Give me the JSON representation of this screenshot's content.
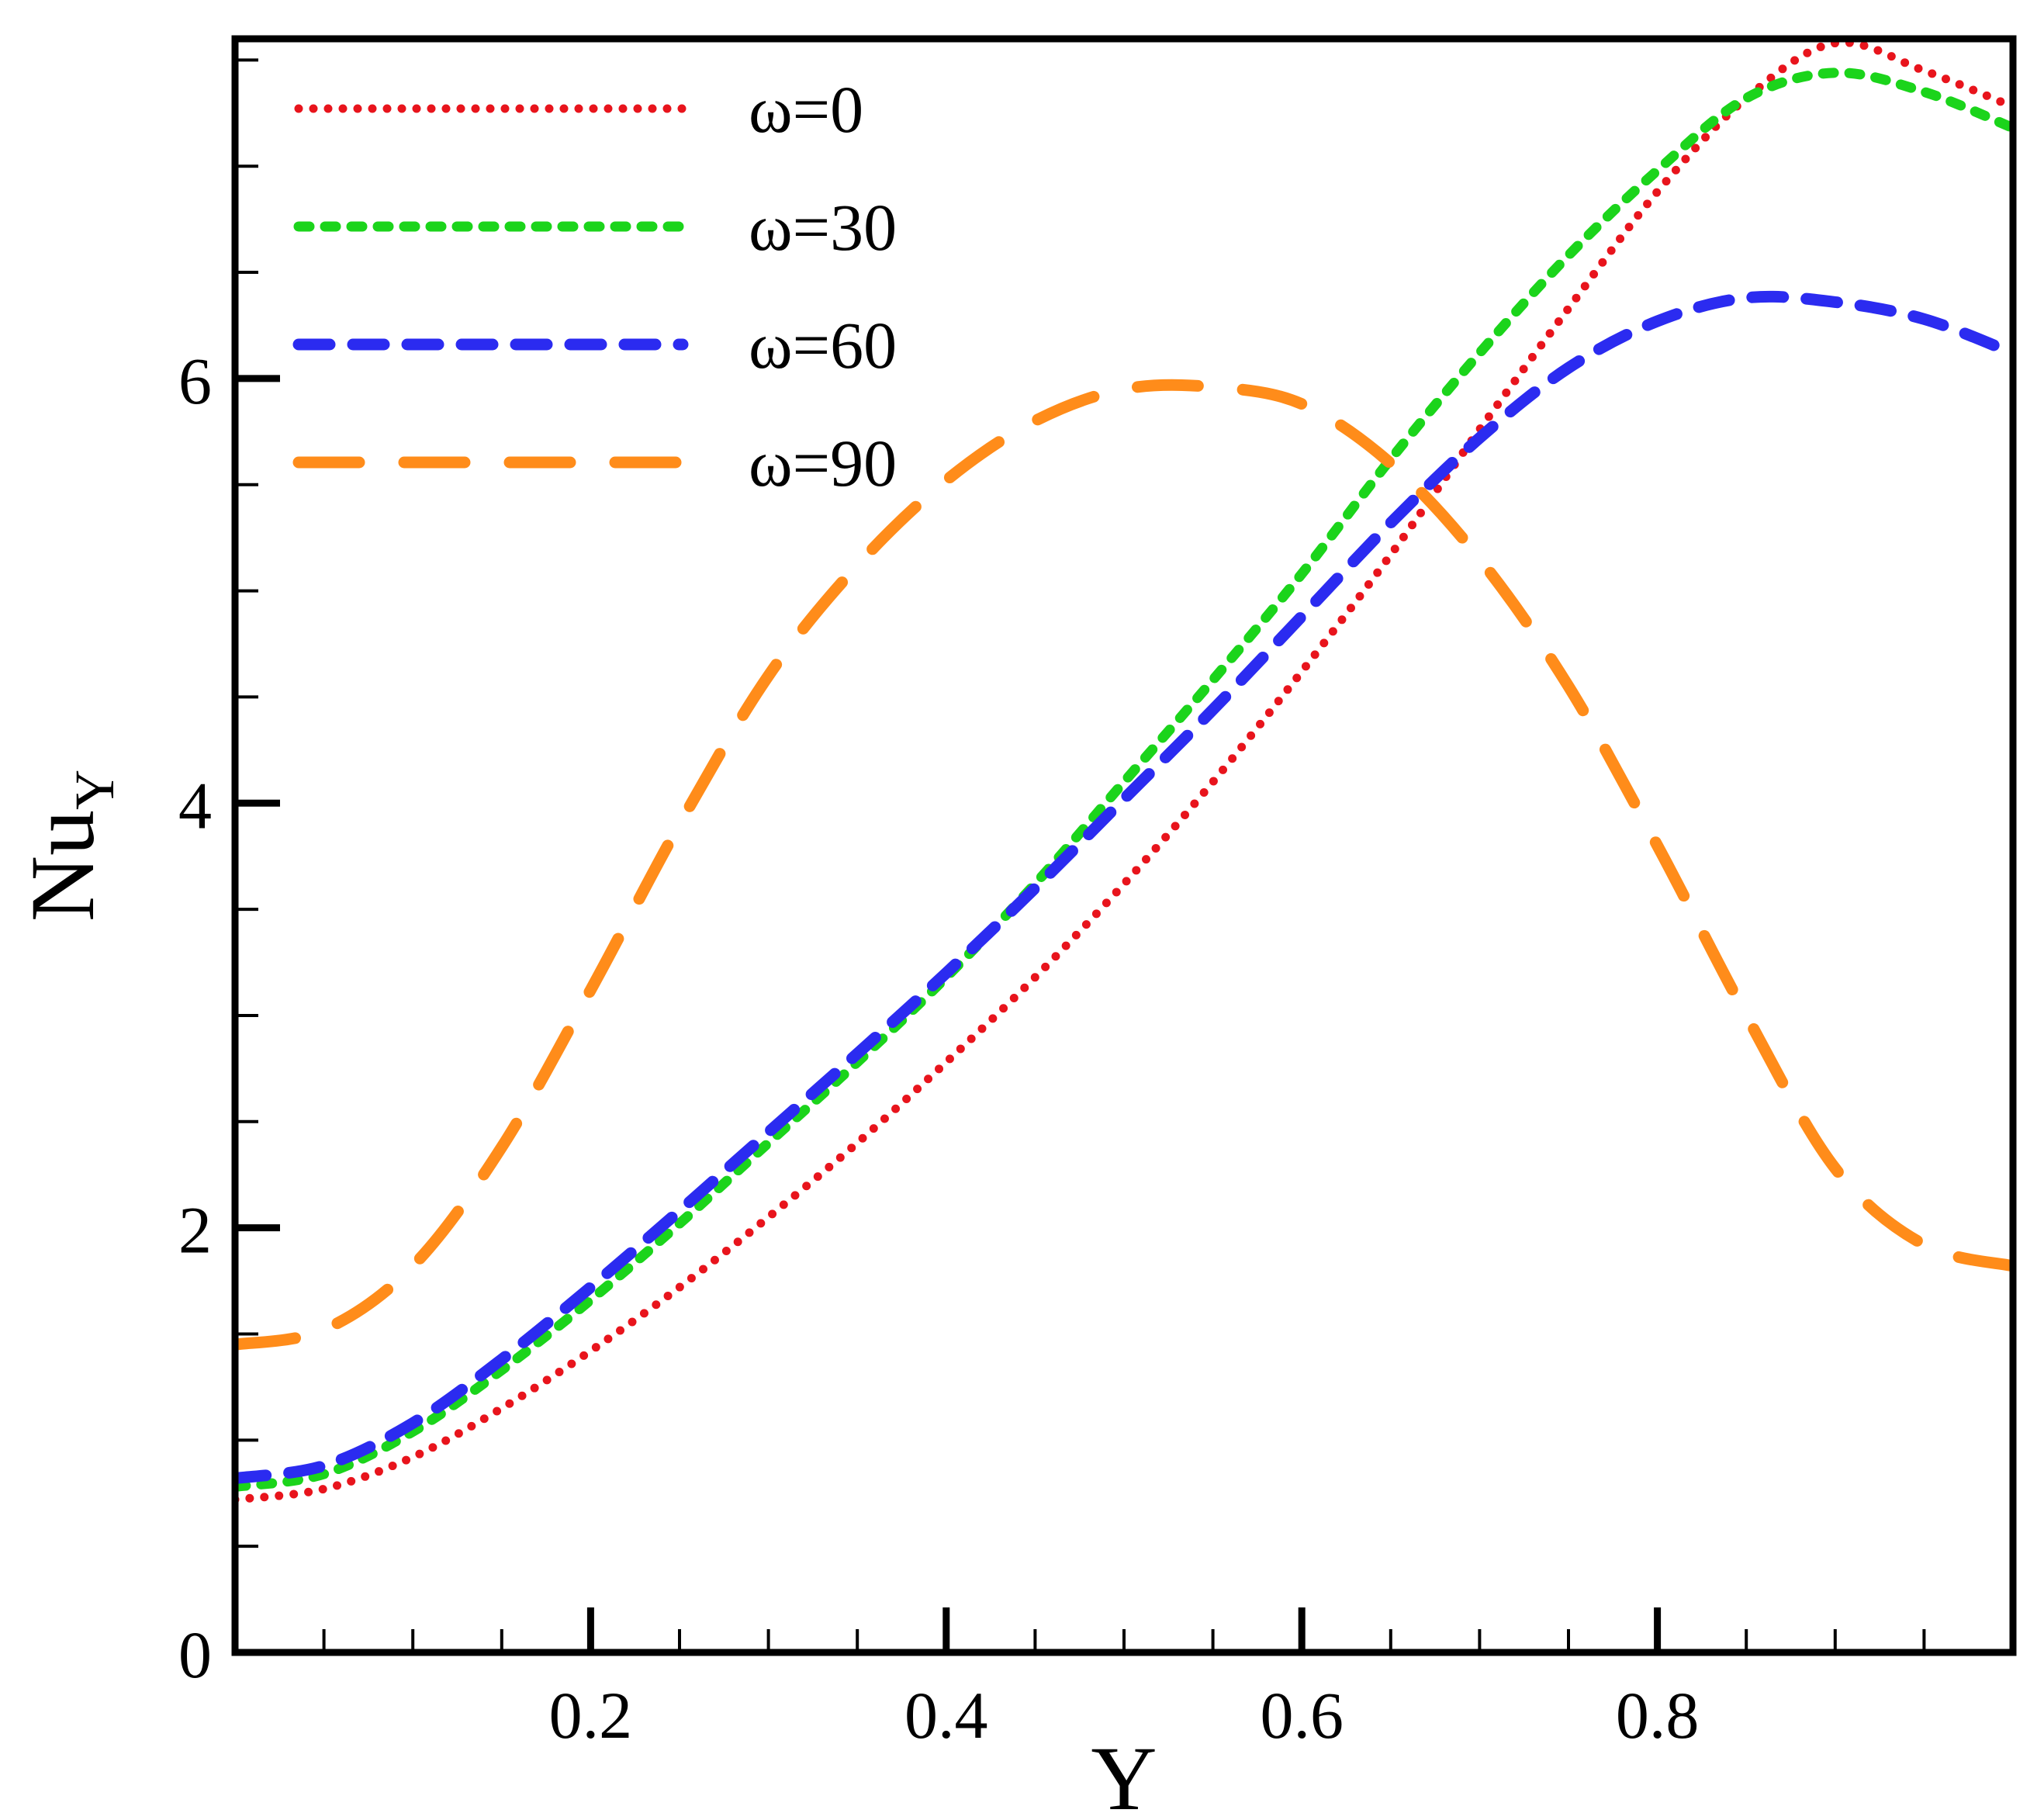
{
  "chart_data": {
    "type": "line",
    "title": "",
    "xlabel": "Y",
    "ylabel": "Nu",
    "ylabel_subscript": "Y",
    "xlim": [
      0.0,
      1.0
    ],
    "ylim": [
      0,
      7.6
    ],
    "x_ticks": [
      {
        "value": 0.2,
        "label": "0.2"
      },
      {
        "value": 0.4,
        "label": "0.4"
      },
      {
        "value": 0.6,
        "label": "0.6"
      },
      {
        "value": 0.8,
        "label": "0.8"
      }
    ],
    "y_ticks": [
      {
        "value": 0,
        "label": "0"
      },
      {
        "value": 2,
        "label": "2"
      },
      {
        "value": 4,
        "label": "4"
      },
      {
        "value": 6,
        "label": "6"
      }
    ],
    "x_minor_step": 0.05,
    "y_minor_step": 0.5,
    "grid": false,
    "legend_position": "top-left",
    "series": [
      {
        "name": "ω=0",
        "color": "#e8141c",
        "style": "dotted",
        "x": [
          0.0,
          0.05,
          0.1,
          0.15,
          0.2,
          0.25,
          0.3,
          0.35,
          0.4,
          0.45,
          0.5,
          0.55,
          0.6,
          0.65,
          0.7,
          0.75,
          0.8,
          0.85,
          0.9,
          0.95,
          1.0
        ],
        "y": [
          0.72,
          0.77,
          0.92,
          1.15,
          1.42,
          1.72,
          2.05,
          2.4,
          2.78,
          3.18,
          3.62,
          4.1,
          4.62,
          5.17,
          5.76,
          6.33,
          6.88,
          7.32,
          7.58,
          7.45,
          7.28
        ]
      },
      {
        "name": "ω=30",
        "color": "#1bd41b",
        "style": "short-dash",
        "x": [
          0.0,
          0.05,
          0.1,
          0.15,
          0.2,
          0.25,
          0.3,
          0.35,
          0.4,
          0.45,
          0.5,
          0.55,
          0.6,
          0.65,
          0.7,
          0.75,
          0.8,
          0.85,
          0.9,
          0.95,
          1.0
        ],
        "y": [
          0.78,
          0.84,
          1.04,
          1.33,
          1.66,
          2.02,
          2.4,
          2.78,
          3.18,
          3.62,
          4.1,
          4.58,
          5.08,
          5.62,
          6.12,
          6.58,
          6.98,
          7.32,
          7.44,
          7.35,
          7.18
        ]
      },
      {
        "name": "ω=60",
        "color": "#2b2bf0",
        "style": "dash",
        "x": [
          0.0,
          0.05,
          0.1,
          0.15,
          0.2,
          0.25,
          0.3,
          0.35,
          0.4,
          0.45,
          0.5,
          0.55,
          0.6,
          0.65,
          0.7,
          0.75,
          0.8,
          0.85,
          0.9,
          0.95,
          1.0
        ],
        "y": [
          0.82,
          0.88,
          1.08,
          1.38,
          1.72,
          2.08,
          2.45,
          2.82,
          3.2,
          3.6,
          4.02,
          4.44,
          4.88,
          5.32,
          5.72,
          6.05,
          6.27,
          6.38,
          6.36,
          6.28,
          6.12
        ]
      },
      {
        "name": "ω=90",
        "color": "#ff8c1a",
        "style": "long-dash",
        "x": [
          0.0,
          0.05,
          0.1,
          0.15,
          0.2,
          0.25,
          0.3,
          0.35,
          0.4,
          0.45,
          0.5,
          0.55,
          0.6,
          0.65,
          0.7,
          0.75,
          0.8,
          0.85,
          0.9,
          0.95,
          1.0
        ],
        "y": [
          1.45,
          1.52,
          1.82,
          2.38,
          3.12,
          3.9,
          4.6,
          5.12,
          5.52,
          5.8,
          5.95,
          5.96,
          5.88,
          5.6,
          5.15,
          4.55,
          3.8,
          3.0,
          2.28,
          1.92,
          1.82
        ]
      }
    ]
  }
}
